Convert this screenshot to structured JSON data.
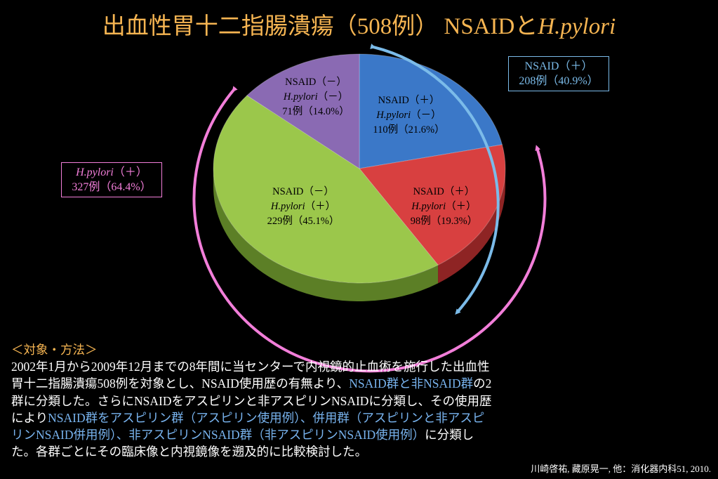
{
  "title": {
    "main": "出血性胃十二指腸潰瘍（508例）",
    "nsaid": "NSAIDと",
    "hp": "H.pylori"
  },
  "chart_data": {
    "type": "pie",
    "slices": [
      {
        "line1": "NSAID（＋）",
        "hp_italic": "H.pylori",
        "hp_sign": "（－）",
        "count_text": "110例（21.6%）",
        "count": 110,
        "percent": 21.6,
        "color": "#3b78c8",
        "side": "#1f4a87"
      },
      {
        "line1": "NSAID（＋）",
        "hp_italic": "H.pylori",
        "hp_sign": "（＋）",
        "count_text": "98例（19.3%）",
        "count": 98,
        "percent": 19.3,
        "color": "#d84040",
        "side": "#8e2424"
      },
      {
        "line1": "NSAID（－）",
        "hp_italic": "H.pylori",
        "hp_sign": "（＋）",
        "count_text": "229例（45.1%）",
        "count": 229,
        "percent": 45.1,
        "color": "#9bc74b",
        "side": "#5c7f26"
      },
      {
        "line1": "NSAID（－）",
        "hp_italic": "H.pylori",
        "hp_sign": "（－）",
        "count_text": "71例（14.0%）",
        "count": 71,
        "percent": 14.0,
        "color": "#8a6ab3",
        "side": "#55407a"
      }
    ]
  },
  "groups": {
    "nsaid": {
      "line1": "NSAID（＋）",
      "line2": "208例（40.9%）",
      "color": "#7bbbe9"
    },
    "hp": {
      "italic": "H.pylori",
      "sign": "（＋）",
      "line2": "327例（64.4%）",
      "color": "#f27ed9"
    }
  },
  "methods": {
    "heading": "＜対象・方法＞",
    "s1": "2002年1月から2009年12月までの8年間に当センターで内視鏡的止血術を施行した出血性胃十二指腸潰瘍508例を対象とし、NSAID使用歴の有無より、",
    "s2": "NSAID群と非NSAID群",
    "s3": "の2群に分類した。さらにNSAIDをアスピリンと非アスピリンNSAIDに分類し、その使用歴により",
    "s4": "NSAID群をアスピリン群（アスピリン使用例）、併用群（アスピリンと非アスピリンNSAID併用例）、非アスピリンNSAID群（非アスピリンNSAID使用例）",
    "s5": "に分類した。各群ごとにその臨床像と内視鏡像を遡及的に比較検討した。"
  },
  "citation": "川崎啓祐, 藏原晃一, 他：消化器内科51, 2010."
}
